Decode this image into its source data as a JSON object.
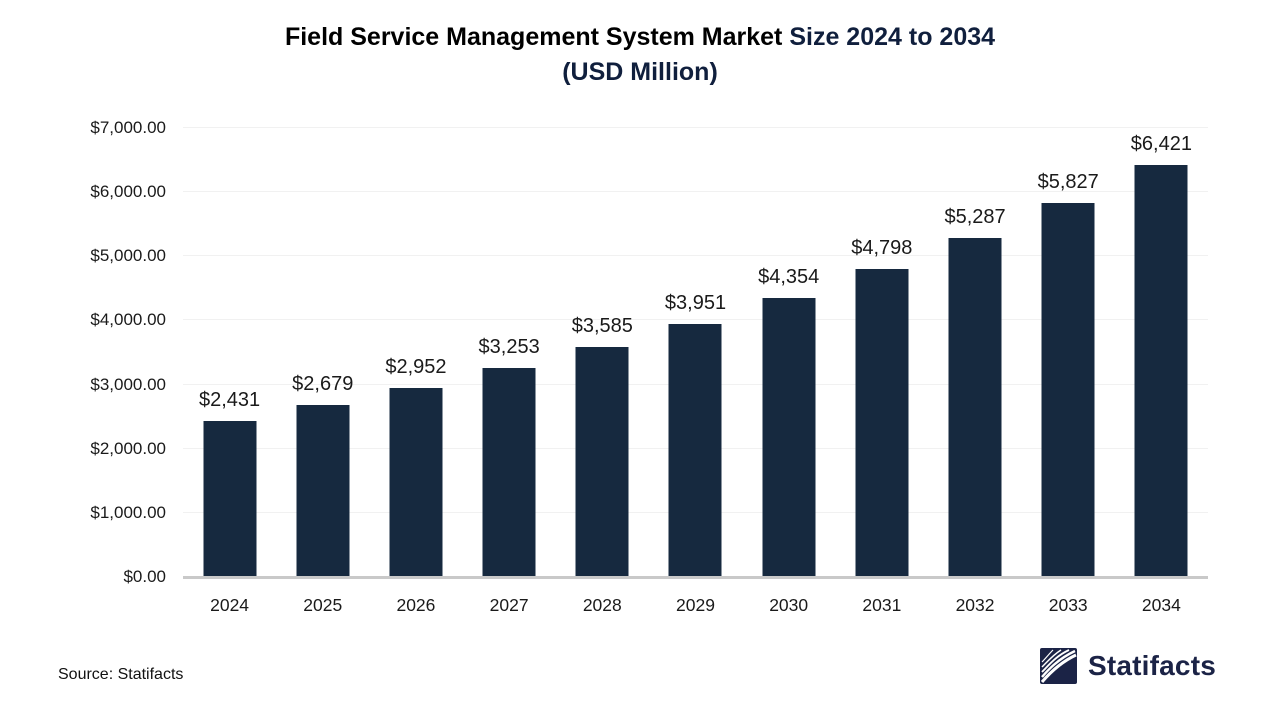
{
  "title": {
    "line1_black": "Field Service Management System Market",
    "line1_accent": " Size 2024 to 2034",
    "line2": "(USD Million)"
  },
  "chart_data": {
    "type": "bar",
    "title": "Field Service Management System Market Size 2024 to 2034 (USD Million)",
    "categories": [
      "2024",
      "2025",
      "2026",
      "2027",
      "2028",
      "2029",
      "2030",
      "2031",
      "2032",
      "2033",
      "2034"
    ],
    "values": [
      2431,
      2679,
      2952,
      3253,
      3585,
      3951,
      4354,
      4798,
      5287,
      5827,
      6421
    ],
    "value_labels": [
      "$2,431",
      "$2,679",
      "$2,952",
      "$3,253",
      "$3,585",
      "$3,951",
      "$4,354",
      "$4,798",
      "$5,287",
      "$5,827",
      "$6,421"
    ],
    "y_ticks": [
      "$0.00",
      "$1,000.00",
      "$2,000.00",
      "$3,000.00",
      "$4,000.00",
      "$5,000.00",
      "$6,000.00",
      "$7,000.00"
    ],
    "ylim": [
      0,
      7000
    ],
    "xlabel": "",
    "ylabel": "",
    "grid": true,
    "legend": "none",
    "bar_color": "#16293f",
    "gridline_color": "#f1f1f1",
    "axis_line_color": "#c9c9c9"
  },
  "footer": {
    "source": "Source: Statifacts",
    "brand": "Statifacts"
  },
  "colors": {
    "title_accent": "#101f3d",
    "brand_navy": "#1b2346",
    "text": "#1a1a1a"
  }
}
